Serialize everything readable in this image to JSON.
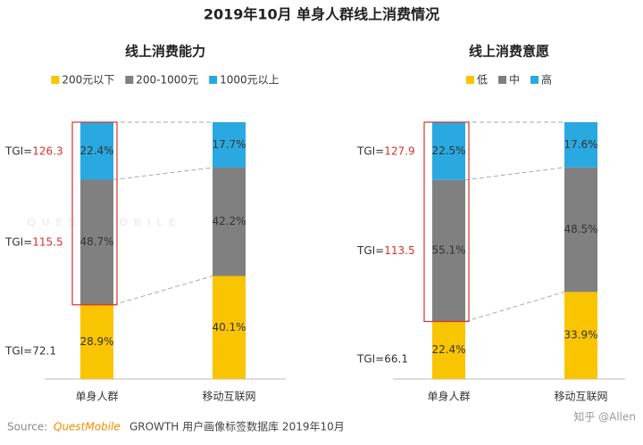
{
  "title": "2019年10月 单身人群线上消费情况",
  "watermark": "QUEST MOBILE",
  "source": {
    "label": "Source:",
    "brand": "QuestMobile",
    "text": "GROWTH 用户画像标签数据库 2019年10月"
  },
  "credit": "知乎 @Allen",
  "chart_data": [
    {
      "type": "stacked-bar",
      "title": "线上消费能力",
      "categories": [
        "单身人群",
        "移动互联网"
      ],
      "series": [
        {
          "name": "200元以下",
          "color": "#f9c400",
          "values": [
            28.9,
            40.1
          ],
          "value_labels": [
            "28.9%",
            "40.1%"
          ],
          "annotation": {
            "prefix": "TGI=",
            "value": 72.1,
            "color": "#333333"
          }
        },
        {
          "name": "200-1000元",
          "color": "#808080",
          "values": [
            48.7,
            42.2
          ],
          "value_labels": [
            "48.7%",
            "42.2%"
          ],
          "annotation": {
            "prefix": "TGI=",
            "value": 115.5,
            "color": "#d9312b"
          }
        },
        {
          "name": "1000元以上",
          "color": "#29a9e0",
          "values": [
            22.4,
            17.7
          ],
          "value_labels": [
            "22.4%",
            "17.7%"
          ],
          "annotation": {
            "prefix": "TGI=",
            "value": 126.3,
            "color": "#d9312b"
          }
        }
      ]
    },
    {
      "type": "stacked-bar",
      "title": "线上消费意愿",
      "categories": [
        "单身人群",
        "移动互联网"
      ],
      "series": [
        {
          "name": "低",
          "color": "#f9c400",
          "values": [
            22.4,
            33.9
          ],
          "value_labels": [
            "22.4%",
            "33.9%"
          ],
          "annotation": {
            "prefix": "TGI=",
            "value": 66.1,
            "color": "#333333"
          }
        },
        {
          "name": "中",
          "color": "#808080",
          "values": [
            55.1,
            48.5
          ],
          "value_labels": [
            "55.1%",
            "48.5%"
          ],
          "annotation": {
            "prefix": "TGI=",
            "value": 113.5,
            "color": "#d9312b"
          }
        },
        {
          "name": "高",
          "color": "#29a9e0",
          "values": [
            22.5,
            17.6
          ],
          "value_labels": [
            "22.5%",
            "17.6%"
          ],
          "annotation": {
            "prefix": "TGI=",
            "value": 127.9,
            "color": "#d9312b"
          }
        }
      ]
    }
  ]
}
